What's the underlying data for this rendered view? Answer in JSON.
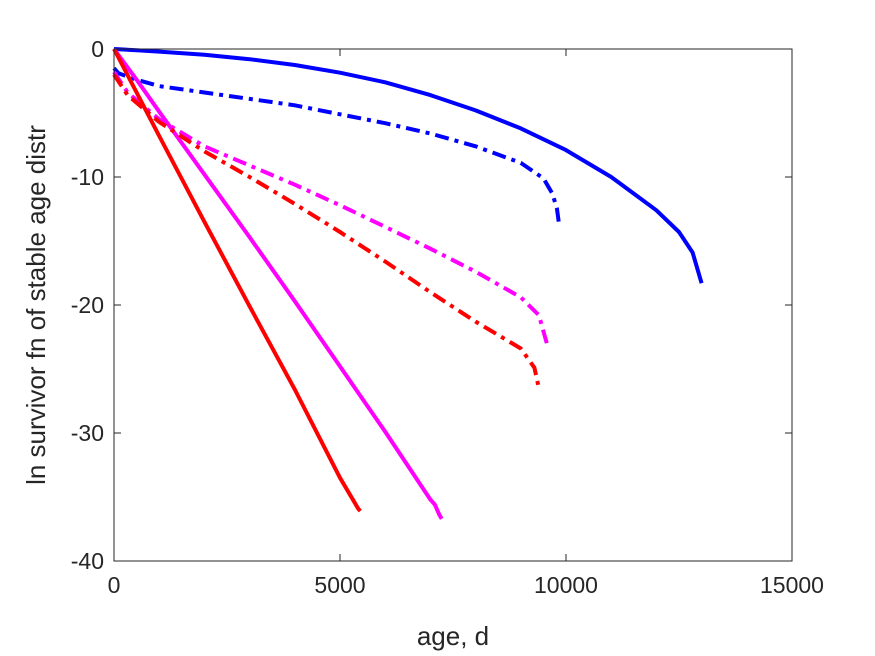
{
  "chart_data": {
    "type": "line",
    "title": "",
    "xlabel": "age, d",
    "ylabel": "ln survivor fn of stable age distr",
    "xlim": [
      0,
      15000
    ],
    "ylim": [
      -40,
      0
    ],
    "xticks": [
      0,
      5000,
      10000,
      15000
    ],
    "yticks": [
      -40,
      -30,
      -20,
      -10,
      0
    ],
    "xtick_labels": [
      "0",
      "5000",
      "10000",
      "15000"
    ],
    "ytick_labels": [
      "-40",
      "-30",
      "-20",
      "-10",
      "0"
    ],
    "grid": false,
    "legend": "none",
    "series": [
      {
        "color": "#0000ff",
        "style": "solid",
        "x": [
          0,
          500,
          1000,
          2000,
          3000,
          4000,
          5000,
          6000,
          7000,
          8000,
          9000,
          10000,
          11000,
          12000,
          12500,
          12800,
          13000
        ],
        "y": [
          0,
          -0.1,
          -0.2,
          -0.45,
          -0.8,
          -1.25,
          -1.85,
          -2.6,
          -3.6,
          -4.8,
          -6.2,
          -7.9,
          -10.0,
          -12.6,
          -14.3,
          -15.9,
          -18.3
        ]
      },
      {
        "color": "#0000ff",
        "style": "dashdot",
        "x": [
          0,
          100,
          500,
          1000,
          2000,
          3000,
          4000,
          5000,
          6000,
          7000,
          8000,
          9000,
          9500,
          9700,
          9800,
          9850
        ],
        "y": [
          -1.5,
          -1.9,
          -2.4,
          -2.9,
          -3.4,
          -3.9,
          -4.4,
          -5.1,
          -5.8,
          -6.6,
          -7.6,
          -8.9,
          -10.1,
          -11.3,
          -12.5,
          -13.8
        ]
      },
      {
        "color": "#ff00ff",
        "style": "solid",
        "x": [
          0,
          500,
          1000,
          2000,
          3000,
          4000,
          5000,
          6000,
          7000,
          7100,
          7200,
          7250
        ],
        "y": [
          0,
          -2.4,
          -4.9,
          -9.8,
          -14.7,
          -19.7,
          -24.8,
          -29.9,
          -35.2,
          -35.6,
          -36.4,
          -36.7
        ]
      },
      {
        "color": "#ff00ff",
        "style": "dashdot",
        "x": [
          0,
          300,
          1000,
          2000,
          3000,
          4000,
          5000,
          6000,
          7000,
          8000,
          9000,
          9400,
          9600
        ],
        "y": [
          -1.8,
          -3.4,
          -5.5,
          -7.6,
          -9.1,
          -10.6,
          -12.2,
          -13.9,
          -15.6,
          -17.4,
          -19.4,
          -20.8,
          -23.3
        ]
      },
      {
        "color": "#ff0000",
        "style": "solid",
        "x": [
          0,
          500,
          1000,
          2000,
          3000,
          4000,
          5000,
          5300,
          5400,
          5450
        ],
        "y": [
          0,
          -3.4,
          -6.8,
          -13.5,
          -20.1,
          -26.6,
          -33.5,
          -35.3,
          -35.9,
          -36.1
        ]
      },
      {
        "color": "#ff0000",
        "style": "dashdot",
        "x": [
          0,
          300,
          1000,
          2000,
          3000,
          4000,
          5000,
          6000,
          7000,
          8000,
          9000,
          9300,
          9400
        ],
        "y": [
          -2.0,
          -3.6,
          -5.7,
          -8.0,
          -10.0,
          -12.1,
          -14.3,
          -16.6,
          -19.0,
          -21.3,
          -23.4,
          -24.9,
          -26.5
        ]
      }
    ]
  }
}
